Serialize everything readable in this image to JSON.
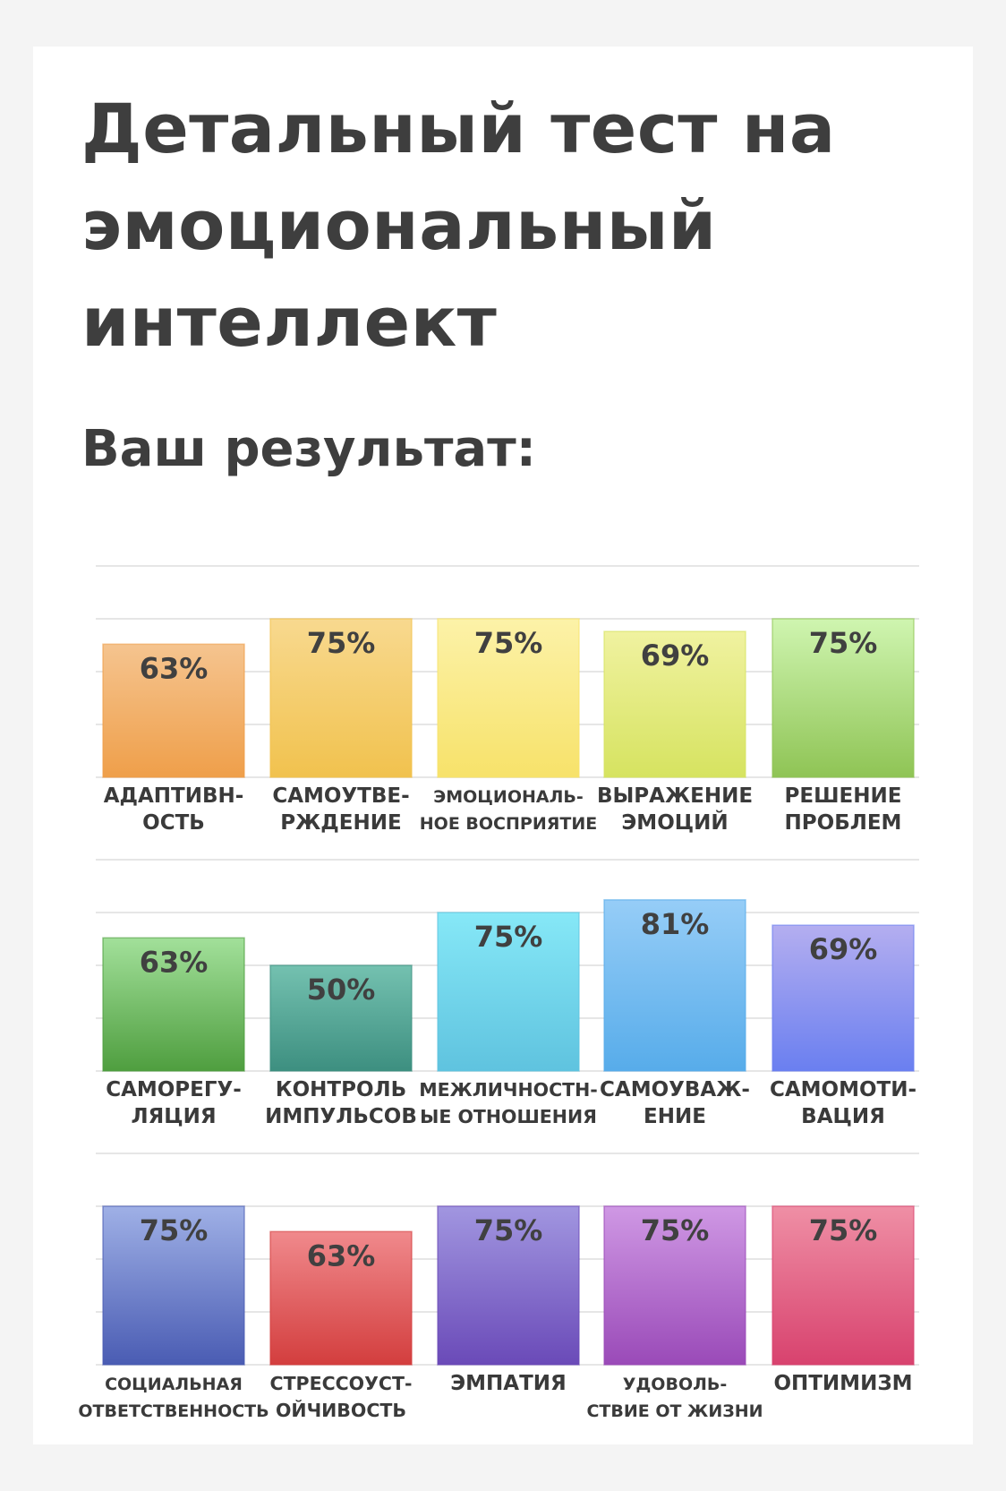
{
  "header": {
    "title": "Детальный тест на эмоциональный интеллект",
    "subtitle": "Ваш результат:"
  },
  "chart_data": {
    "type": "bar",
    "ylim": [
      0,
      100
    ],
    "grid": true,
    "legend": "none",
    "value_format": "{v}%",
    "rows": [
      {
        "categories": [
          [
            "АДАПТИВН-",
            "ОСТЬ"
          ],
          [
            "САМОУТВЕ-",
            "РЖДЕНИЕ"
          ],
          [
            "ЭМОЦИОНАЛЬ-",
            "НОЕ ВОСПРИЯТИЕ"
          ],
          [
            "ВЫРАЖЕНИЕ",
            "ЭМОЦИЙ"
          ],
          [
            "РЕШЕНИЕ",
            "ПРОБЛЕМ"
          ]
        ],
        "values": [
          63,
          75,
          75,
          69,
          75
        ],
        "colors": [
          [
            "#f5c48f",
            "#ef9f4a"
          ],
          [
            "#f8d98f",
            "#f1c24e"
          ],
          [
            "#fcf2a8",
            "#f7e26a"
          ],
          [
            "#f0f2a0",
            "#d6e360"
          ],
          [
            "#cff5b0",
            "#8fc455"
          ]
        ]
      },
      {
        "categories": [
          [
            "САМОРЕГУ-",
            "ЛЯЦИЯ"
          ],
          [
            "КОНТРОЛЬ",
            "ИМПУЛЬСОВ"
          ],
          [
            "МЕЖЛИЧНОСТН-",
            "ЫЕ ОТНОШЕНИЯ"
          ],
          [
            "САМОУВАЖ-",
            "ЕНИЕ"
          ],
          [
            "САМОМОТИ-",
            "ВАЦИЯ"
          ]
        ],
        "values": [
          63,
          50,
          75,
          81,
          69
        ],
        "colors": [
          [
            "#a2e09a",
            "#4f9e3f"
          ],
          [
            "#74c1b0",
            "#3d8f80"
          ],
          [
            "#86e8f7",
            "#5fc3df"
          ],
          [
            "#96cdf7",
            "#57acea"
          ],
          [
            "#b4aef0",
            "#6a7ff0"
          ]
        ]
      },
      {
        "categories": [
          [
            "СОЦИАЛЬНАЯ",
            "ОТВЕТСТВЕННОСТЬ"
          ],
          [
            "СТРЕССОУСТ-",
            "ОЙЧИВОСТЬ"
          ],
          [
            "ЭМПАТИЯ"
          ],
          [
            "УДОВОЛЬ-",
            "СТВИЕ ОТ ЖИЗНИ"
          ],
          [
            "ОПТИМИЗМ"
          ]
        ],
        "values": [
          75,
          63,
          75,
          75,
          75
        ],
        "colors": [
          [
            "#9fb0e6",
            "#4a5cb3"
          ],
          [
            "#f0898c",
            "#d33e3e"
          ],
          [
            "#a196e0",
            "#6a4ab8"
          ],
          [
            "#cf98e4",
            "#9a4ab8"
          ],
          [
            "#ef8fa5",
            "#d8426e"
          ]
        ]
      }
    ]
  }
}
